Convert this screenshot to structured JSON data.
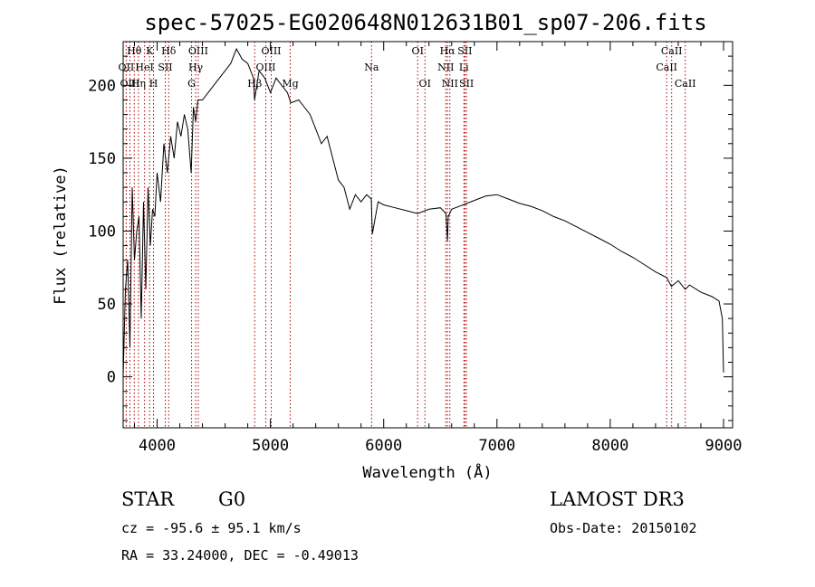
{
  "chart_data": {
    "type": "line",
    "title": "spec-57025-EG020648N012631B01_sp07-206.fits",
    "xlabel": "Wavelength (Å)",
    "ylabel": "Flux (relative)",
    "xlim": [
      3700,
      9080
    ],
    "ylim": [
      -35,
      230
    ],
    "xticks": [
      4000,
      5000,
      6000,
      7000,
      8000,
      9000
    ],
    "yticks": [
      0,
      50,
      100,
      150,
      200
    ],
    "series": [
      {
        "name": "flux",
        "x": [
          3700,
          3720,
          3740,
          3760,
          3780,
          3800,
          3820,
          3840,
          3860,
          3880,
          3900,
          3920,
          3940,
          3960,
          3980,
          4000,
          4030,
          4060,
          4090,
          4120,
          4150,
          4180,
          4210,
          4240,
          4270,
          4300,
          4320,
          4340,
          4360,
          4400,
          4450,
          4500,
          4550,
          4600,
          4650,
          4700,
          4750,
          4800,
          4850,
          4860,
          4900,
          4950,
          5000,
          5050,
          5100,
          5150,
          5180,
          5250,
          5300,
          5350,
          5400,
          5450,
          5500,
          5550,
          5600,
          5650,
          5700,
          5750,
          5800,
          5850,
          5890,
          5900,
          5950,
          6000,
          6100,
          6200,
          6300,
          6400,
          6500,
          6550,
          6563,
          6570,
          6600,
          6700,
          6800,
          6900,
          7000,
          7100,
          7200,
          7300,
          7400,
          7500,
          7600,
          7700,
          7800,
          7900,
          8000,
          8100,
          8200,
          8300,
          8400,
          8500,
          8540,
          8600,
          8662,
          8700,
          8800,
          8900,
          8960,
          8990,
          9000
        ],
        "y": [
          0,
          60,
          80,
          20,
          130,
          80,
          100,
          110,
          40,
          120,
          60,
          130,
          90,
          115,
          110,
          140,
          120,
          160,
          140,
          165,
          150,
          175,
          165,
          180,
          170,
          140,
          185,
          175,
          190,
          190,
          195,
          200,
          205,
          210,
          215,
          225,
          218,
          215,
          205,
          190,
          210,
          205,
          195,
          205,
          200,
          195,
          188,
          190,
          185,
          180,
          170,
          160,
          165,
          150,
          135,
          130,
          115,
          125,
          120,
          125,
          122,
          98,
          120,
          118,
          116,
          114,
          112,
          115,
          116,
          112,
          93,
          110,
          115,
          118,
          121,
          124,
          125,
          122,
          119,
          117,
          114,
          110,
          107,
          103,
          99,
          95,
          91,
          86,
          82,
          77,
          72,
          68,
          62,
          66,
          60,
          63,
          58,
          55,
          52,
          40,
          3
        ]
      }
    ],
    "spectral_lines": [
      {
        "name": "Hθ",
        "x": 3798,
        "row": 1
      },
      {
        "name": "K",
        "x": 3934,
        "row": 1
      },
      {
        "name": "Hδ",
        "x": 4102,
        "row": 1
      },
      {
        "name": "OIII",
        "x": 4363,
        "row": 1
      },
      {
        "name": "OIII",
        "x": 5007,
        "row": 1
      },
      {
        "name": "OI",
        "x": 6300,
        "row": 1
      },
      {
        "name": "Hα",
        "x": 6563,
        "row": 1
      },
      {
        "name": "SII",
        "x": 6717,
        "row": 1
      },
      {
        "name": "CaII",
        "x": 8542,
        "row": 1
      },
      {
        "name": "OII",
        "x": 3727,
        "row": 2
      },
      {
        "name": "HeI",
        "x": 3889,
        "row": 2
      },
      {
        "name": "SII",
        "x": 4072,
        "row": 2
      },
      {
        "name": "Hγ",
        "x": 4340,
        "row": 2
      },
      {
        "name": "OIII",
        "x": 4959,
        "row": 2
      },
      {
        "name": "Na",
        "x": 5893,
        "row": 2
      },
      {
        "name": "NII",
        "x": 6548,
        "row": 2
      },
      {
        "name": "Li",
        "x": 6708,
        "row": 2
      },
      {
        "name": "CaII",
        "x": 8498,
        "row": 2
      },
      {
        "name": "OIII",
        "x": 3760,
        "row": 3
      },
      {
        "name": "Hη",
        "x": 3835,
        "row": 3
      },
      {
        "name": "H",
        "x": 3968,
        "row": 3
      },
      {
        "name": "G",
        "x": 4304,
        "row": 3
      },
      {
        "name": "Hβ",
        "x": 4861,
        "row": 3
      },
      {
        "name": "Mg",
        "x": 5175,
        "row": 3
      },
      {
        "name": "OI",
        "x": 6364,
        "row": 3
      },
      {
        "name": "NII",
        "x": 6584,
        "row": 3
      },
      {
        "name": "SII",
        "x": 6731,
        "row": 3
      },
      {
        "name": "CaII",
        "x": 8662,
        "row": 3
      }
    ]
  },
  "footer": {
    "class_label": "STAR",
    "subclass_label": "G0",
    "cz_text": "cz = -95.6 ± 95.1 km/s",
    "coords_text": "RA =  33.24000, DEC =  -0.49013",
    "survey_label": "LAMOST DR3",
    "obs_date_text": "Obs-Date: 20150102"
  },
  "colors": {
    "spectrum": "#000000",
    "line_marker": "#b00000",
    "axis": "#000000"
  }
}
